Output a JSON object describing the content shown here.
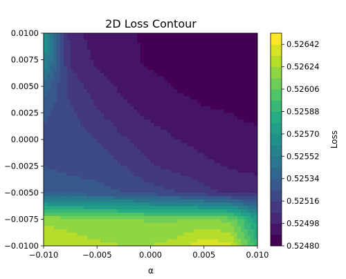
{
  "chart_data": {
    "type": "heatmap",
    "subtype": "filled-contour",
    "title": "2D Loss Contour",
    "xlabel": "α",
    "ylabel": "",
    "colorbar_label": "Loss",
    "xlim": [
      -0.01,
      0.01
    ],
    "ylim": [
      -0.01,
      0.01
    ],
    "zlim": [
      0.5248,
      0.52651
    ],
    "x_ticks": [
      -0.01,
      -0.005,
      0.0,
      0.005,
      0.01
    ],
    "x_tick_labels": [
      "−0.010",
      "−0.005",
      "0.000",
      "0.005",
      "0.010"
    ],
    "y_ticks": [
      -0.01,
      -0.0075,
      -0.005,
      -0.0025,
      0.0,
      0.0025,
      0.005,
      0.0075,
      0.01
    ],
    "y_tick_labels": [
      "−0.0100",
      "−0.0075",
      "−0.0050",
      "−0.0025",
      "0.0000",
      "0.0025",
      "0.0050",
      "0.0075",
      "0.0100"
    ],
    "colorbar_ticks": [
      0.5248,
      0.52498,
      0.52516,
      0.52534,
      0.52552,
      0.5257,
      0.52588,
      0.52606,
      0.52624,
      0.52642
    ],
    "colorbar_tick_labels": [
      "0.52480",
      "0.52498",
      "0.52516",
      "0.52534",
      "0.52552",
      "0.52570",
      "0.52588",
      "0.52606",
      "0.52624",
      "0.52642"
    ],
    "levels": [
      0.5248,
      0.52489,
      0.52498,
      0.52507,
      0.52516,
      0.52525,
      0.52534,
      0.52543,
      0.52552,
      0.52561,
      0.5257,
      0.52579,
      0.52588,
      0.52597,
      0.52606,
      0.52615,
      0.52624,
      0.52633,
      0.52642,
      0.52651
    ],
    "colormap": "viridis",
    "grid": false,
    "legend": "none",
    "z_grid": {
      "x": [
        -0.01,
        -0.0075,
        -0.005,
        -0.0025,
        0.0,
        0.0025,
        0.005,
        0.0075,
        0.01
      ],
      "y": [
        0.01,
        0.0075,
        0.005,
        0.0025,
        0.0,
        -0.0025,
        -0.005,
        -0.0075,
        -0.01
      ],
      "values": [
        [
          0.52575,
          0.52502,
          0.52494,
          0.5249,
          0.52488,
          0.52484,
          0.52484,
          0.52483,
          0.52482
        ],
        [
          0.52562,
          0.52505,
          0.52496,
          0.52492,
          0.52487,
          0.52486,
          0.52484,
          0.52483,
          0.52483
        ],
        [
          0.5254,
          0.52512,
          0.52502,
          0.52496,
          0.52492,
          0.52488,
          0.52486,
          0.52484,
          0.52482
        ],
        [
          0.52527,
          0.52518,
          0.52508,
          0.525,
          0.52496,
          0.52493,
          0.5249,
          0.52489,
          0.52487
        ],
        [
          0.52522,
          0.5252,
          0.52516,
          0.52508,
          0.52502,
          0.52498,
          0.52495,
          0.52492,
          0.52491
        ],
        [
          0.52525,
          0.52523,
          0.52521,
          0.52516,
          0.52508,
          0.52504,
          0.525,
          0.52497,
          0.52495
        ],
        [
          0.5253,
          0.52529,
          0.52528,
          0.52525,
          0.5252,
          0.52516,
          0.5251,
          0.52505,
          0.52504
        ],
        [
          0.52622,
          0.5262,
          0.52617,
          0.52616,
          0.52614,
          0.52614,
          0.52616,
          0.52612,
          0.52575
        ],
        [
          0.52632,
          0.52628,
          0.52626,
          0.52624,
          0.52624,
          0.52628,
          0.5264,
          0.52635,
          0.5259
        ]
      ]
    }
  }
}
